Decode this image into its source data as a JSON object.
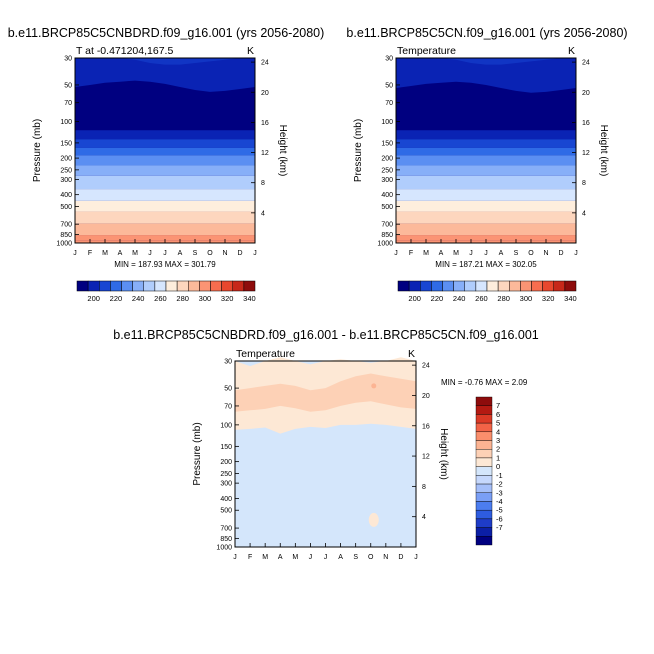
{
  "page": {
    "diff_title": "b.e11.BRCP85C5CNBDRD.f09_g16.001 - b.e11.BRCP85C5CN.f09_g16.001"
  },
  "colors": {
    "abs_scale": [
      "#000080",
      "#0a23b4",
      "#1846d2",
      "#2f6be6",
      "#5b8ff2",
      "#87aff8",
      "#b0cdfc",
      "#d6e6fe",
      "#feeedd",
      "#fdd6be",
      "#fcb99a",
      "#fb9474",
      "#f76d4f",
      "#e8472e",
      "#c7281a",
      "#8e0c0c"
    ],
    "diff_scale": [
      "#000080",
      "#0b1fa6",
      "#1e3cc8",
      "#2e5ce0",
      "#4c7df0",
      "#7a9ff6",
      "#a5bff9",
      "#c6d8fc",
      "#d4e6fb",
      "#fde8d5",
      "#fdd1b6",
      "#fcb493",
      "#fa8e6c",
      "#f26347",
      "#db3a26",
      "#b41a12",
      "#8e0c0c"
    ]
  },
  "chart_data": [
    {
      "type": "heatmap",
      "title": "b.e11.BRCP85C5CNBDRD.f09_g16.001 (yrs 2056-2080)",
      "left_label": "T at -0.471204,167.5",
      "right_label": "K",
      "ylabel": "Pressure (mb)",
      "ylabel_right": "Height (km)",
      "x_ticks": [
        "J",
        "F",
        "M",
        "A",
        "M",
        "J",
        "J",
        "A",
        "S",
        "O",
        "N",
        "D",
        "J"
      ],
      "y_ticks": [
        "30",
        "50",
        "70",
        "100",
        "150",
        "200",
        "250",
        "300",
        "400",
        "500",
        "700",
        "850",
        "1000"
      ],
      "y_ticks_right": [
        "24",
        "20",
        "16",
        "12",
        "8",
        "4"
      ],
      "stats": "MIN = 187.93 MAX = 301.79",
      "colorbar_labels": [
        "200",
        "220",
        "240",
        "260",
        "280",
        "300",
        "320",
        "340"
      ],
      "bands_mb_bottom_up": [
        {
          "top": 950,
          "level": 12
        },
        {
          "top": 860,
          "level": 11
        },
        {
          "top": 690,
          "level": 10
        },
        {
          "top": 550,
          "level": 9
        },
        {
          "top": 450,
          "level": 8
        },
        {
          "top": 360,
          "level": 7
        },
        {
          "top": 280,
          "level": 6
        },
        {
          "top": 230,
          "level": 5
        },
        {
          "top": 190,
          "level": 4
        },
        {
          "top": 165,
          "level": 3
        },
        {
          "top": 140,
          "level": 2
        },
        {
          "top": 118,
          "level": 1
        }
      ],
      "tropopause_mb": [
        52,
        50,
        48,
        47,
        46,
        47,
        49,
        52,
        55,
        57,
        56,
        54,
        52
      ],
      "upper_band_mb": [
        30,
        30,
        30,
        30,
        31,
        33,
        34,
        34,
        33,
        32,
        31,
        30,
        30
      ]
    },
    {
      "type": "heatmap",
      "title": "b.e11.BRCP85C5CN.f09_g16.001 (yrs 2056-2080)",
      "left_label": "Temperature",
      "right_label": "K",
      "ylabel": "Pressure (mb)",
      "ylabel_right": "Height (km)",
      "x_ticks": [
        "J",
        "F",
        "M",
        "A",
        "M",
        "J",
        "J",
        "A",
        "S",
        "O",
        "N",
        "D",
        "J"
      ],
      "y_ticks": [
        "30",
        "50",
        "70",
        "100",
        "150",
        "200",
        "250",
        "300",
        "400",
        "500",
        "700",
        "850",
        "1000"
      ],
      "y_ticks_right": [
        "24",
        "20",
        "16",
        "12",
        "8",
        "4"
      ],
      "stats": "MIN = 187.21 MAX = 302.05",
      "colorbar_labels": [
        "200",
        "220",
        "240",
        "260",
        "280",
        "300",
        "320",
        "340"
      ],
      "bands_mb_bottom_up": [
        {
          "top": 950,
          "level": 12
        },
        {
          "top": 860,
          "level": 11
        },
        {
          "top": 690,
          "level": 10
        },
        {
          "top": 550,
          "level": 9
        },
        {
          "top": 450,
          "level": 8
        },
        {
          "top": 360,
          "level": 7
        },
        {
          "top": 280,
          "level": 6
        },
        {
          "top": 230,
          "level": 5
        },
        {
          "top": 190,
          "level": 4
        },
        {
          "top": 165,
          "level": 3
        },
        {
          "top": 140,
          "level": 2
        },
        {
          "top": 118,
          "level": 1
        }
      ],
      "tropopause_mb": [
        53,
        51,
        49,
        48,
        47,
        48,
        50,
        53,
        56,
        58,
        57,
        55,
        53
      ],
      "upper_band_mb": [
        30,
        30,
        30,
        30,
        31,
        33,
        34,
        34,
        33,
        32,
        31,
        30,
        30
      ]
    },
    {
      "type": "heatmap",
      "left_label": "Temperature",
      "right_label": "K",
      "ylabel": "Pressure (mb)",
      "ylabel_right": "Height (km)",
      "x_ticks": [
        "J",
        "F",
        "M",
        "A",
        "M",
        "J",
        "J",
        "A",
        "S",
        "O",
        "N",
        "D",
        "J"
      ],
      "y_ticks": [
        "30",
        "50",
        "70",
        "100",
        "150",
        "200",
        "250",
        "300",
        "400",
        "500",
        "700",
        "850",
        "1000"
      ],
      "y_ticks_right": [
        "24",
        "20",
        "16",
        "12",
        "8",
        "4"
      ],
      "stats": "MIN =  -0.76 MAX =   2.09",
      "colorbar_labels": [
        "7",
        "6",
        "5",
        "4",
        "3",
        "2",
        "1",
        "0",
        "-1",
        "-2",
        "-3",
        "-4",
        "-5",
        "-6",
        "-7"
      ],
      "zero_pos_top_mb": [
        30,
        33,
        30,
        28,
        30,
        32,
        30,
        29,
        30,
        31,
        30,
        28,
        30
      ],
      "pos_ge1_top_mb": [
        52,
        50,
        48,
        46,
        48,
        52,
        50,
        44,
        40,
        38,
        40,
        42,
        44
      ],
      "pos_ge1_bottom_mb": [
        78,
        76,
        74,
        70,
        73,
        78,
        76,
        70,
        66,
        64,
        68,
        72,
        74
      ],
      "zero_pos_bottom_mb": [
        110,
        108,
        105,
        118,
        108,
        104,
        106,
        100,
        100,
        98,
        100,
        104,
        108
      ]
    }
  ]
}
